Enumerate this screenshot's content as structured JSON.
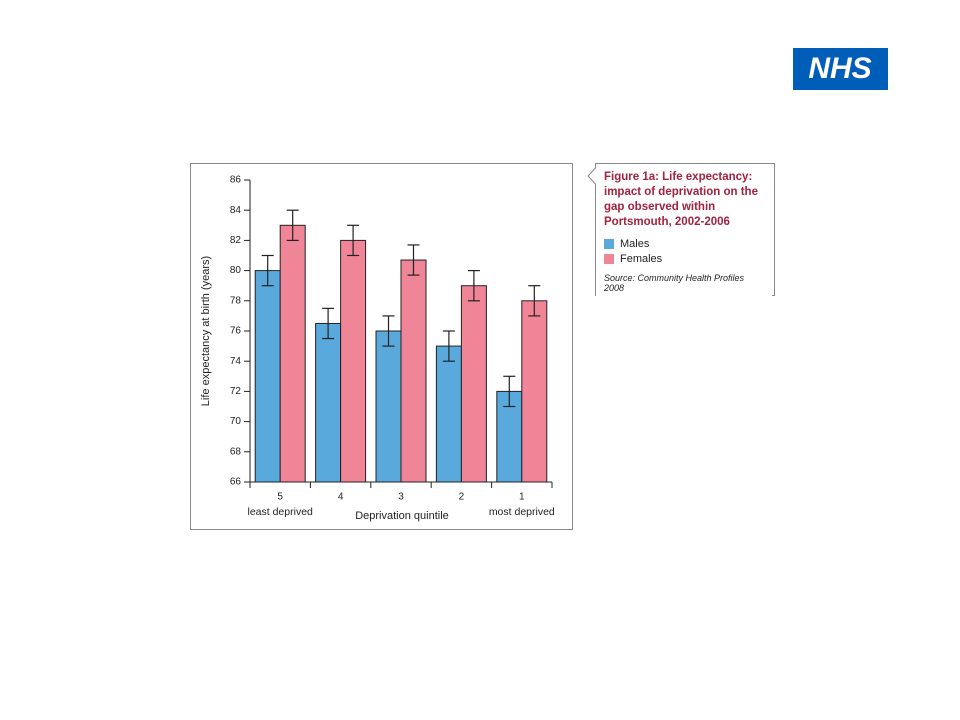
{
  "logo": "NHS",
  "chart_data": {
    "type": "bar",
    "title": "Figure 1a: Life expectancy: impact of deprivation on the gap observed within Portsmouth, 2002-2006",
    "source": "Source: Community Health Profiles 2008",
    "y_label": "Life expectancy at birth (years)",
    "x_label": "Deprivation quintile",
    "categories": [
      "5",
      "4",
      "3",
      "2",
      "1"
    ],
    "category_sublabels": [
      "least deprived",
      null,
      null,
      null,
      "most deprived"
    ],
    "series": [
      {
        "name": "Males",
        "color": "#5aa9dc",
        "values": [
          80,
          76.5,
          76,
          75,
          72
        ],
        "errors": [
          1,
          1,
          1,
          1,
          1
        ]
      },
      {
        "name": "Females",
        "color": "#f08598",
        "values": [
          83,
          82,
          80.7,
          79,
          78
        ],
        "errors": [
          1,
          1,
          1,
          1,
          1
        ]
      }
    ],
    "ylim": [
      66,
      86
    ],
    "yticks": [
      66,
      68,
      70,
      72,
      74,
      76,
      78,
      80,
      82,
      84,
      86
    ],
    "grid": false
  }
}
